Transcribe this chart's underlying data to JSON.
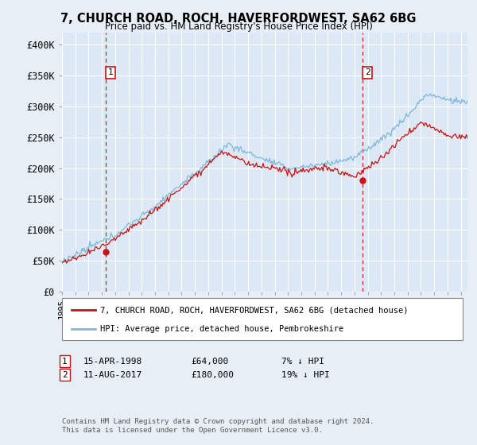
{
  "title": "7, CHURCH ROAD, ROCH, HAVERFORDWEST, SA62 6BG",
  "subtitle": "Price paid vs. HM Land Registry's House Price Index (HPI)",
  "background_color": "#e8eef5",
  "plot_bg_color": "#dce8f5",
  "sale1_date": 1998.29,
  "sale1_price": 64000,
  "sale2_date": 2017.62,
  "sale2_price": 180000,
  "ymin": 0,
  "ymax": 420000,
  "xmin": 1995.0,
  "xmax": 2025.5,
  "yticks": [
    0,
    50000,
    100000,
    150000,
    200000,
    250000,
    300000,
    350000,
    400000
  ],
  "ytick_labels": [
    "£0",
    "£50K",
    "£100K",
    "£150K",
    "£200K",
    "£250K",
    "£300K",
    "£350K",
    "£400K"
  ],
  "legend_line1": "7, CHURCH ROAD, ROCH, HAVERFORDWEST, SA62 6BG (detached house)",
  "legend_line2": "HPI: Average price, detached house, Pembrokeshire",
  "footer1": "Contains HM Land Registry data © Crown copyright and database right 2024.",
  "footer2": "This data is licensed under the Open Government Licence v3.0.",
  "hpi_color": "#7db8d8",
  "price_color": "#cc1111",
  "vline_color": "#cc2222",
  "sale1_label": "15-APR-1998",
  "sale1_pct": "7% ↓ HPI",
  "sale2_label": "11-AUG-2017",
  "sale2_pct": "19% ↓ HPI",
  "sale1_price_str": "£64,000",
  "sale2_price_str": "£180,000"
}
